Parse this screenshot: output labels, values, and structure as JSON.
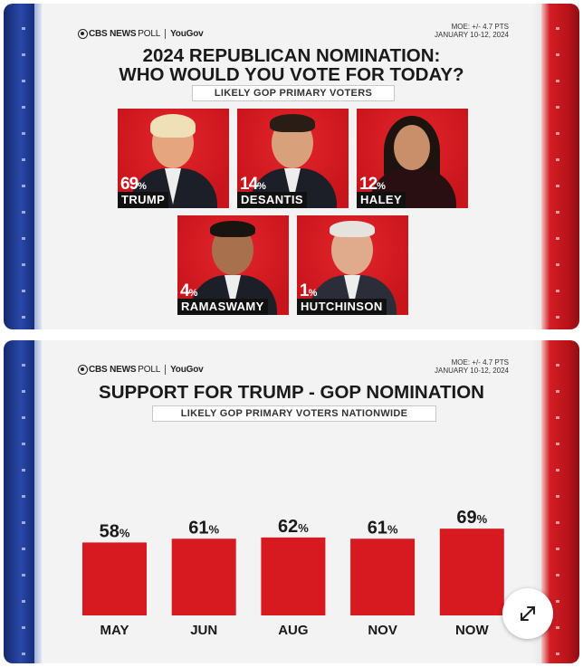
{
  "brand": {
    "cbs": "CBS NEWS",
    "poll": "POLL",
    "partner": "YouGov"
  },
  "top": {
    "moe_line1": "MOE: +/- 4.7 PTS",
    "moe_line2": "JANUARY 10-12, 2024",
    "title_line1": "2024 REPUBLICAN NOMINATION:",
    "title_line2": "WHO WOULD YOU VOTE FOR TODAY?",
    "subtitle": "LIKELY GOP PRIMARY VOTERS",
    "candidates": [
      {
        "name": "TRUMP",
        "pct": "69",
        "unit": "%"
      },
      {
        "name": "DESANTIS",
        "pct": "14",
        "unit": "%"
      },
      {
        "name": "HALEY",
        "pct": "12",
        "unit": "%"
      },
      {
        "name": "RAMASWAMY",
        "pct": "4",
        "unit": "%"
      },
      {
        "name": "HUTCHINSON",
        "pct": "1",
        "unit": "%"
      }
    ]
  },
  "bottom": {
    "moe_line1": "MOE: +/- 4.7 PTS",
    "moe_line2": "JANUARY 10-12, 2024",
    "title": "SUPPORT FOR TRUMP - GOP NOMINATION",
    "subtitle": "LIKELY GOP PRIMARY VOTERS NATIONWIDE"
  },
  "colors": {
    "bar": "#d71920",
    "blue": "#1b3589",
    "red": "#c4161d"
  },
  "icons": {
    "expand": "expand-arrows-icon"
  },
  "chart_data": {
    "type": "bar",
    "title": "SUPPORT FOR TRUMP - GOP NOMINATION",
    "subtitle": "LIKELY GOP PRIMARY VOTERS NATIONWIDE",
    "categories": [
      "MAY",
      "JUN",
      "AUG",
      "NOV",
      "NOW"
    ],
    "values": [
      58,
      61,
      62,
      61,
      69
    ],
    "value_suffix": "%",
    "ylim": [
      0,
      100
    ],
    "grid": false
  }
}
